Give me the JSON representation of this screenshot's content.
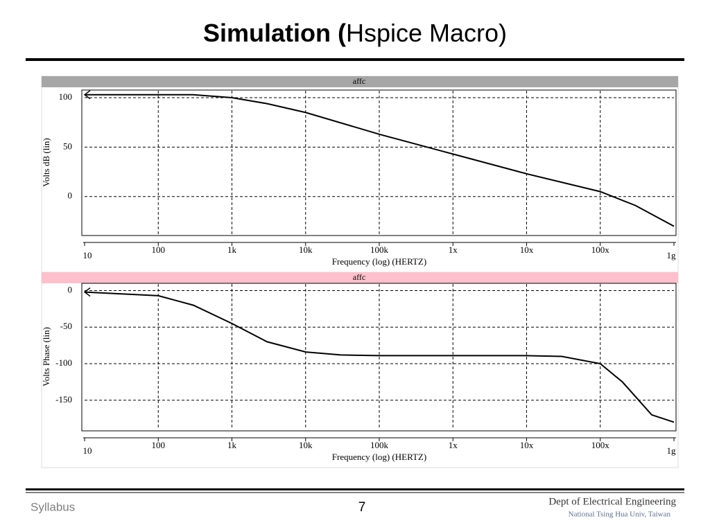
{
  "slide": {
    "title_bold": "Simulation (",
    "title_rest": "Hspice Macro)",
    "footer_left": "Syllabus",
    "page": "7",
    "dept": "Dept of Electrical Engineering",
    "univ": "National Tsing Hua Univ, Taiwan"
  },
  "chart_data": [
    {
      "type": "line",
      "title": "affc",
      "y_label": "Volts dB (lin)",
      "x_label": "Frequency (log) (HERTZ)",
      "xscale": "log",
      "grid": true,
      "header_color": "#a6a6a6",
      "x": [
        10,
        100,
        300,
        1000,
        3000,
        10000,
        100000,
        1000000,
        10000000,
        100000000,
        300000000,
        1000000000
      ],
      "series": [
        {
          "name": "affc",
          "color": "#000000",
          "values": [
            103,
            103,
            103,
            100,
            94,
            85,
            63,
            43,
            23,
            5,
            -9,
            -30
          ]
        }
      ],
      "xlim": [
        10,
        1000000000
      ],
      "xticks": [
        10,
        100,
        {
          "value": 1000,
          "label": "1k"
        },
        {
          "value": 10000,
          "label": "10k"
        },
        {
          "value": 100000,
          "label": "100k"
        },
        {
          "value": 1000000,
          "label": "1x"
        },
        {
          "value": 10000000,
          "label": "10x"
        },
        {
          "value": 100000000,
          "label": "100x"
        },
        {
          "value": 1000000000,
          "label": "1g"
        }
      ],
      "ylim": [
        -38,
        107
      ],
      "yticks": [
        0,
        50,
        100
      ]
    },
    {
      "type": "line",
      "title": "affc",
      "y_label": "Volts Phase (lin)",
      "x_label": "Frequency (log) (HERTZ)",
      "xscale": "log",
      "grid": true,
      "header_color": "#ffc0cb",
      "x": [
        10,
        100,
        300,
        1000,
        3000,
        10000,
        30000,
        100000,
        1000000,
        10000000,
        30000000,
        100000000,
        200000000,
        500000000,
        1000000000
      ],
      "series": [
        {
          "name": "affc",
          "color": "#000000",
          "values": [
            -2,
            -7,
            -20,
            -45,
            -70,
            -84,
            -88,
            -89,
            -89,
            -89,
            -90,
            -100,
            -125,
            -170,
            -180
          ]
        }
      ],
      "xlim": [
        10,
        1000000000
      ],
      "xticks": [
        10,
        100,
        {
          "value": 1000,
          "label": "1k"
        },
        {
          "value": 10000,
          "label": "10k"
        },
        {
          "value": 100000,
          "label": "100k"
        },
        {
          "value": 1000000,
          "label": "1x"
        },
        {
          "value": 10000000,
          "label": "10x"
        },
        {
          "value": 100000000,
          "label": "100x"
        },
        {
          "value": 1000000000,
          "label": "1g"
        }
      ],
      "ylim": [
        -190,
        9
      ],
      "yticks": [
        0,
        -50,
        -100,
        -150
      ]
    }
  ]
}
